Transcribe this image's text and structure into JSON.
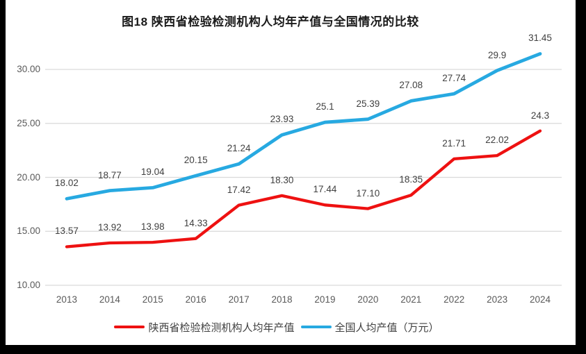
{
  "title": "图18 陕西省检验检测机构人均年产值与全国情况的比较",
  "chart_data": {
    "type": "line",
    "title": "图18 陕西省检验检测机构人均年产值与全国情况的比较",
    "categories": [
      "2013",
      "2014",
      "2015",
      "2016",
      "2017",
      "2018",
      "2019",
      "2020",
      "2021",
      "2022",
      "2023",
      "2024"
    ],
    "series": [
      {
        "name": "陕西省检验检测机构人均年产值",
        "color": "#ee1111",
        "values": [
          13.57,
          13.92,
          13.98,
          14.33,
          17.42,
          18.3,
          17.44,
          17.1,
          18.35,
          21.71,
          22.02,
          24.3
        ],
        "point_labels": [
          "13.57",
          "13.92",
          "13.98",
          "14.33",
          "17.42",
          "18.30",
          "17.44",
          "17.10",
          "18.35",
          "21.71",
          "22.02",
          "24.3"
        ]
      },
      {
        "name": "全国人均产值（万元）",
        "color": "#27a9e1",
        "values": [
          18.02,
          18.77,
          19.04,
          20.15,
          21.24,
          23.93,
          25.1,
          25.39,
          27.08,
          27.74,
          29.9,
          31.45
        ],
        "point_labels": [
          "18.02",
          "18.77",
          "19.04",
          "20.15",
          "21.24",
          "23.93",
          "25.1",
          "25.39",
          "27.08",
          "27.74",
          "29.9",
          "31.45"
        ]
      }
    ],
    "y_ticks": [
      "10.00",
      "15.00",
      "20.00",
      "25.00",
      "30.00"
    ],
    "y_tick_values": [
      10,
      15,
      20,
      25,
      30
    ],
    "ylim": [
      10,
      30
    ],
    "grid": true,
    "legend_position": "bottom",
    "colors": {
      "grid": "#d9d9d9",
      "axis_text": "#595959",
      "label_text": "#404040",
      "title_text": "#1a1a1a",
      "frame": "#000000",
      "background": "#ffffff"
    }
  }
}
